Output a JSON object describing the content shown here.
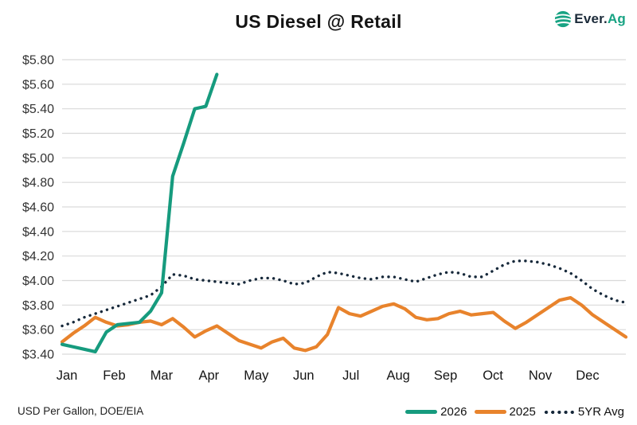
{
  "header": {
    "title": "US Diesel @ Retail",
    "logo": {
      "primary": "Ever.",
      "accent": "Ag"
    }
  },
  "footer": {
    "note": "USD Per Gallon, DOE/EIA"
  },
  "colors": {
    "teal": "#169B7E",
    "orange": "#E8832C",
    "navy": "#16283A",
    "logo_navy": "#1C2B3A",
    "logo_teal": "#18A383",
    "grid": "#D9D9D9",
    "axis_text": "#333333",
    "month_text": "#141414"
  },
  "chart_data": {
    "type": "line",
    "title": "US Diesel @ Retail",
    "source_note": "USD Per Gallon, DOE/EIA",
    "grid": "horizontal",
    "legend_position": "bottom-right",
    "x_axis": {
      "categories": [
        "Jan",
        "Feb",
        "Mar",
        "Apr",
        "May",
        "Jun",
        "Jul",
        "Aug",
        "Sep",
        "Oct",
        "Nov",
        "Dec"
      ],
      "granularity": "weekly",
      "weeks": 52
    },
    "y_axis": {
      "min": 3.4,
      "max": 5.8,
      "tick_step": 0.2,
      "tick_labels": [
        "$3.40",
        "$3.60",
        "$3.80",
        "$4.00",
        "$4.20",
        "$4.40",
        "$4.60",
        "$4.80",
        "$5.00",
        "$5.20",
        "$5.40",
        "$5.60",
        "$5.80"
      ]
    },
    "series": [
      {
        "name": "2026",
        "color": "#169B7E",
        "style": "solid",
        "start_week": 0,
        "values": [
          3.48,
          3.46,
          3.44,
          3.42,
          3.58,
          3.64,
          3.65,
          3.66,
          3.75,
          3.9,
          4.85,
          5.12,
          5.4,
          5.42,
          5.68
        ]
      },
      {
        "name": "2025",
        "color": "#E8832C",
        "style": "solid",
        "start_week": 0,
        "values": [
          3.5,
          3.57,
          3.63,
          3.7,
          3.66,
          3.63,
          3.64,
          3.66,
          3.67,
          3.64,
          3.69,
          3.62,
          3.54,
          3.59,
          3.63,
          3.57,
          3.51,
          3.48,
          3.45,
          3.5,
          3.53,
          3.45,
          3.43,
          3.46,
          3.56,
          3.78,
          3.73,
          3.71,
          3.75,
          3.79,
          3.81,
          3.77,
          3.7,
          3.68,
          3.69,
          3.73,
          3.75,
          3.72,
          3.73,
          3.74,
          3.67,
          3.61,
          3.66,
          3.72,
          3.78,
          3.84,
          3.86,
          3.8,
          3.72,
          3.66,
          3.6,
          3.54
        ]
      },
      {
        "name": "5YR Avg",
        "color": "#16283A",
        "style": "dotted",
        "start_week": 0,
        "values": [
          3.63,
          3.66,
          3.7,
          3.73,
          3.76,
          3.79,
          3.82,
          3.85,
          3.88,
          3.95,
          4.05,
          4.04,
          4.01,
          4.0,
          3.99,
          3.98,
          3.97,
          4.0,
          4.02,
          4.02,
          4.0,
          3.97,
          3.98,
          4.03,
          4.07,
          4.06,
          4.04,
          4.02,
          4.01,
          4.03,
          4.03,
          4.01,
          3.99,
          4.02,
          4.05,
          4.07,
          4.06,
          4.03,
          4.03,
          4.08,
          4.13,
          4.16,
          4.16,
          4.15,
          4.13,
          4.1,
          4.06,
          4.0,
          3.93,
          3.88,
          3.84,
          3.82
        ]
      }
    ]
  },
  "legend": [
    {
      "label": "2026"
    },
    {
      "label": "2025"
    },
    {
      "label": "5YR Avg"
    }
  ]
}
